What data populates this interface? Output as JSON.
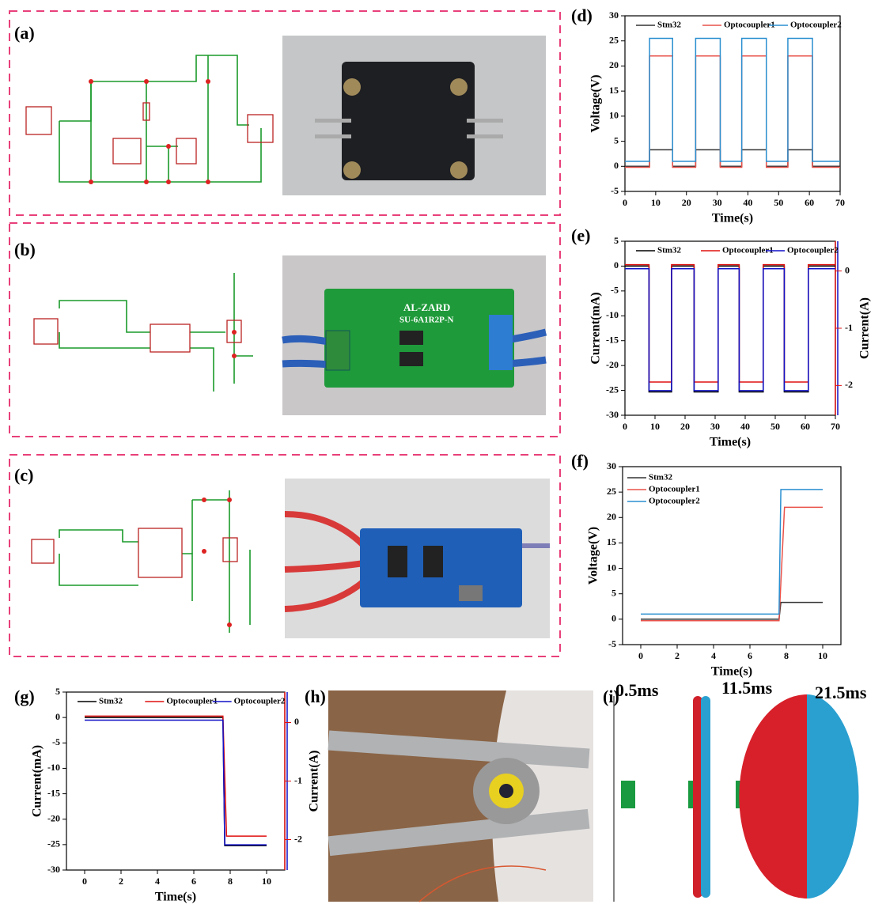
{
  "panel_labels": [
    "(a)",
    "(b)",
    "(c)",
    "(d)",
    "(e)",
    "(f)",
    "(g)",
    "(h)",
    "(i)"
  ],
  "board_text": [
    "AL-ZARD",
    "SU-6A1R2P-N"
  ],
  "sim_labels": [
    "0.5ms",
    "11.5ms",
    "21.5ms"
  ],
  "chart_data": [
    {
      "type": "line",
      "x_label": "Time(s)",
      "y_label": "Voltage(V)",
      "xlim": [
        0,
        70
      ],
      "xticks": [
        0,
        10,
        20,
        30,
        40,
        50,
        60,
        70
      ],
      "ylim": [
        -5,
        30
      ],
      "yticks": [
        -5,
        0,
        5,
        10,
        15,
        20,
        25,
        30
      ],
      "legend": "upper center",
      "legend_columns": 3,
      "series": [
        {
          "name": "Stm32",
          "color": "#333333",
          "x": [
            0,
            8,
            8,
            15.5,
            15.5,
            23,
            23,
            31,
            31,
            38,
            38,
            46,
            46,
            53,
            53,
            61,
            61,
            70
          ],
          "values": [
            0,
            0,
            3.3,
            3.3,
            0,
            0,
            3.3,
            3.3,
            0,
            0,
            3.3,
            3.3,
            0,
            0,
            3.3,
            3.3,
            0,
            0
          ]
        },
        {
          "name": "Optocoupler1",
          "color": "#e8524a",
          "x": [
            0,
            8,
            8,
            15.5,
            15.5,
            23,
            23,
            31,
            31,
            38,
            38,
            46,
            46,
            53,
            53,
            61,
            61,
            70
          ],
          "values": [
            -0.2,
            -0.2,
            22,
            22,
            -0.2,
            -0.2,
            22,
            22,
            -0.2,
            -0.2,
            22,
            22,
            -0.2,
            -0.2,
            22,
            22,
            -0.2,
            -0.2
          ]
        },
        {
          "name": "Optocoupler2",
          "color": "#2a8fd0",
          "x": [
            0,
            8,
            8,
            15.5,
            15.5,
            23,
            23,
            31,
            31,
            38,
            38,
            46,
            46,
            53,
            53,
            61,
            61,
            70
          ],
          "values": [
            1,
            1,
            25.5,
            25.5,
            1,
            1,
            25.5,
            25.5,
            1,
            1,
            25.5,
            25.5,
            1,
            1,
            25.5,
            25.5,
            1,
            1
          ]
        }
      ]
    },
    {
      "type": "line",
      "x_label": "Time(s)",
      "y_label": "Current(mA)",
      "y2_label": "Current(A)",
      "xlim": [
        0,
        70
      ],
      "xticks": [
        0,
        10,
        20,
        30,
        40,
        50,
        60,
        70
      ],
      "ylim": [
        -30,
        5
      ],
      "yticks": [
        -30,
        -25,
        -20,
        -15,
        -10,
        -5,
        0,
        5
      ],
      "y2lim": [
        -2.52,
        0.52
      ],
      "y2ticks": [
        -2,
        -1,
        0
      ],
      "legend": "upper center",
      "legend_columns": 3,
      "series": [
        {
          "name": "Stm32",
          "color": "#000000",
          "x": [
            0,
            8,
            8,
            15.5,
            15.5,
            23,
            23,
            31,
            31,
            38,
            38,
            46,
            46,
            53,
            53,
            61,
            61,
            70
          ],
          "values": [
            0,
            0,
            -25.3,
            -25.3,
            0,
            0,
            -25.3,
            -25.3,
            0,
            0,
            -25.3,
            -25.3,
            0,
            0,
            -25.3,
            -25.3,
            0,
            0
          ]
        },
        {
          "name": "Optocoupler1",
          "color": "#e01010",
          "axis": "y2",
          "x": [
            0,
            8,
            8,
            15.5,
            15.5,
            23,
            23,
            31,
            31,
            38,
            38,
            46,
            46,
            53,
            53,
            61,
            61,
            70
          ],
          "values": [
            0.11,
            0.11,
            -1.94,
            -1.94,
            0.11,
            0.11,
            -1.94,
            -1.94,
            0.11,
            0.11,
            -1.94,
            -1.94,
            0.11,
            0.11,
            -1.94,
            -1.94,
            0.11,
            0.11
          ]
        },
        {
          "name": "Optocoupler2",
          "color": "#1010c8",
          "axis": "y2",
          "x": [
            0,
            8,
            8,
            15.5,
            15.5,
            23,
            23,
            31,
            31,
            38,
            38,
            46,
            46,
            53,
            53,
            61,
            61,
            70
          ],
          "values": [
            0.04,
            0.04,
            -2.09,
            -2.09,
            0.04,
            0.04,
            -2.09,
            -2.09,
            0.04,
            0.04,
            -2.09,
            -2.09,
            0.04,
            0.04,
            -2.09,
            -2.09,
            0.04,
            0.04
          ]
        }
      ]
    },
    {
      "type": "line",
      "x_label": "Time(s)",
      "y_label": "Voltage(V)",
      "xlim": [
        -1,
        11
      ],
      "xticks": [
        0,
        2,
        4,
        6,
        8,
        10
      ],
      "ylim": [
        -5,
        30
      ],
      "yticks": [
        -5,
        0,
        5,
        10,
        15,
        20,
        25,
        30
      ],
      "legend": "upper left",
      "legend_columns": 1,
      "series": [
        {
          "name": "Stm32",
          "color": "#333333",
          "x": [
            0,
            7.6,
            7.7,
            10
          ],
          "values": [
            0,
            0,
            3.3,
            3.3
          ]
        },
        {
          "name": "Optocoupler1",
          "color": "#e8524a",
          "x": [
            0,
            7.6,
            7.9,
            10
          ],
          "values": [
            -0.3,
            -0.3,
            22,
            22
          ]
        },
        {
          "name": "Optocoupler2",
          "color": "#2a8fd0",
          "x": [
            0,
            7.6,
            7.7,
            10
          ],
          "values": [
            1,
            1,
            25.5,
            25.5
          ]
        }
      ]
    },
    {
      "type": "line",
      "x_label": "Time(s)",
      "y_label": "Current(mA)",
      "y2_label": "Current(A)",
      "xlim": [
        -1,
        11
      ],
      "xticks": [
        0,
        2,
        4,
        6,
        8,
        10
      ],
      "ylim": [
        -30,
        5
      ],
      "yticks": [
        -30,
        -25,
        -20,
        -15,
        -10,
        -5,
        0,
        5
      ],
      "y2lim": [
        -2.52,
        0.52
      ],
      "y2ticks": [
        -2,
        -1,
        0
      ],
      "legend": "upper center",
      "legend_columns": 3,
      "series": [
        {
          "name": "Stm32",
          "color": "#000000",
          "x": [
            0,
            7.6,
            7.7,
            10
          ],
          "values": [
            0,
            0,
            -25.2,
            -25.2
          ]
        },
        {
          "name": "Optocoupler1",
          "color": "#e01010",
          "axis": "y2",
          "x": [
            0,
            7.6,
            7.8,
            10
          ],
          "values": [
            0.11,
            0.11,
            -1.94,
            -1.94
          ]
        },
        {
          "name": "Optocoupler2",
          "color": "#1010c8",
          "axis": "y2",
          "x": [
            0,
            7.6,
            7.7,
            10
          ],
          "values": [
            0.04,
            0.04,
            -2.09,
            -2.09
          ]
        }
      ]
    }
  ]
}
